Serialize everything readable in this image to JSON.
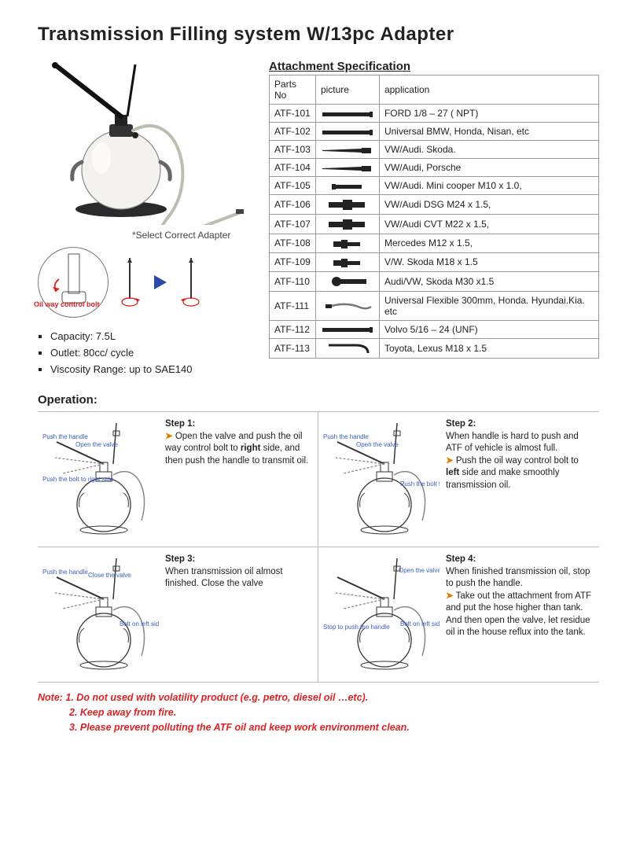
{
  "title": "Transmission Filling system   W/13pc Adapter",
  "selectCaption": "*Select Correct Adapter",
  "oilWayLabel": "Oil way control bolt",
  "specList": [
    "Capacity: 7.5L",
    "Outlet: 80cc/ cycle",
    "Viscosity Range: up to SAE140"
  ],
  "specTitle": "Attachment Specification",
  "tableHeaders": {
    "c0": "Parts No",
    "c1": "picture",
    "c2": "application"
  },
  "parts": [
    {
      "no": "ATF-101",
      "app": "FORD 1/8 – 27 ( NPT)",
      "pic": "bar-long"
    },
    {
      "no": "ATF-102",
      "app": "Universal BMW, Honda, Nisan, etc",
      "pic": "bar-long"
    },
    {
      "no": "ATF-103",
      "app": "VW/Audi. Skoda.",
      "pic": "bar-taper"
    },
    {
      "no": "ATF-104",
      "app": "VW/Audi, Porsche",
      "pic": "bar-taper"
    },
    {
      "no": "ATF-105",
      "app": "VW/Audi. Mini cooper M10 x 1.0,",
      "pic": "bar-short"
    },
    {
      "no": "ATF-106",
      "app": "VW/Audi DSG M24 x 1.5,",
      "pic": "plug-big"
    },
    {
      "no": "ATF-107",
      "app": "VW/Audi CVT M22 x 1.5,",
      "pic": "plug-big"
    },
    {
      "no": "ATF-108",
      "app": "Mercedes M12 x 1.5,",
      "pic": "plug-small"
    },
    {
      "no": "ATF-109",
      "app": "V/W. Skoda M18 x 1.5",
      "pic": "plug-small"
    },
    {
      "no": "ATF-110",
      "app": "Audi/VW, Skoda M30 x1.5",
      "pic": "plug-knob"
    },
    {
      "no": "ATF-111",
      "app": "Universal Flexible 300mm, Honda. Hyundai.Kia. etc",
      "pic": "flex"
    },
    {
      "no": "ATF-112",
      "app": "Volvo 5/16 – 24 (UNF)",
      "pic": "bar-long"
    },
    {
      "no": "ATF-113",
      "app": "Toyota, Lexus M18 x 1.5",
      "pic": "hook"
    }
  ],
  "operationTitle": "Operation:",
  "steps": [
    {
      "title": "Step 1:",
      "arrowText": "Open the valve and push the oil way control bolt to right side, and then push the handle to transmit oil.",
      "plain": ""
    },
    {
      "title": "Step 2:",
      "plain": "When handle is hard to push and ATF of vehicle is almost full.",
      "arrowText": "Push the oil way control bolt to left side and make smoothly transmission oil."
    },
    {
      "title": "Step 3:",
      "plain": "When transmission oil almost finished. Close the valve",
      "arrowText": ""
    },
    {
      "title": "Step 4:",
      "plain": "When finished transmission oil, stop to push the handle.",
      "arrowText": "Take out the attachment from ATF and put the hose higher than tank. And then open the valve, let residue oil in the house reflux into the tank."
    }
  ],
  "diagLabels": {
    "pushHandle": "Push the handle",
    "openValve": "Open the valve",
    "closeValve": "Close the valve",
    "boltRight": "Push the bolt to right side",
    "boltLeft": "Push the bolt to left side",
    "boltOnLeft": "Bolt on left side",
    "stopPush": "Stop to push the handle"
  },
  "notes": {
    "lead": "Note: 1. Do not used with volatility product (e.g. petro, diesel oil …etc).",
    "n2": "2. Keep away from fire.",
    "n3": "3. Please prevent polluting the ATF oil and keep work environment clean."
  },
  "colors": {
    "text": "#222222",
    "red": "#d22222",
    "orange": "#e07c00",
    "blueLabel": "#3a5fc4",
    "border": "#999999"
  }
}
